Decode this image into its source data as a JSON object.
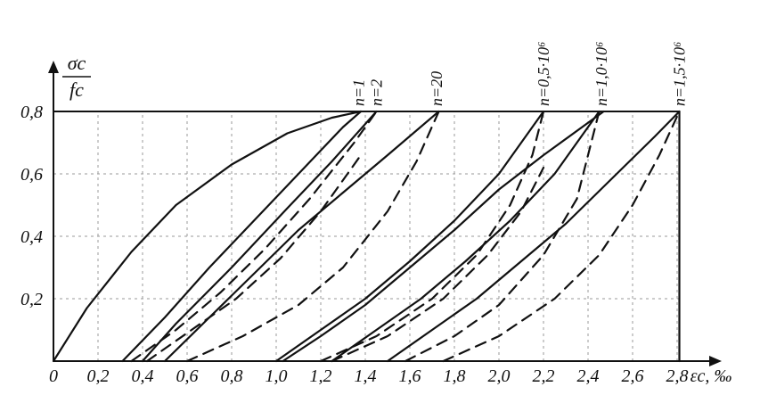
{
  "chart_data": {
    "type": "line",
    "ylabel": {
      "numerator": "σc",
      "denominator": "fc"
    },
    "xlabel": "εc, ‰",
    "xlim": [
      0,
      3.0
    ],
    "ylim": [
      0,
      0.8
    ],
    "grid": true,
    "x_ticks": [
      "0",
      "0,2",
      "0,4",
      "0,6",
      "0,8",
      "1,0",
      "1,2",
      "1,4",
      "1,6",
      "1,8",
      "2,0",
      "2,2",
      "2,4",
      "2,6",
      "2,8"
    ],
    "x_tick_values": [
      0,
      0.2,
      0.4,
      0.6,
      0.8,
      1.0,
      1.2,
      1.4,
      1.6,
      1.8,
      2.0,
      2.2,
      2.4,
      2.6,
      2.8
    ],
    "y_ticks": [
      "0,2",
      "0,4",
      "0,6",
      "0,8"
    ],
    "y_tick_values": [
      0.2,
      0.4,
      0.6,
      0.8
    ],
    "series_labels": [
      {
        "text": "n=1",
        "x": 1.37
      },
      {
        "text": "n=2",
        "x": 1.45
      },
      {
        "text": "n=20",
        "x": 1.72
      },
      {
        "text": "n=0,5·10⁶",
        "x": 2.2
      },
      {
        "text": "n=1,0·10⁶",
        "x": 2.46
      },
      {
        "text": "n=1,5·10⁶",
        "x": 2.81
      }
    ],
    "series": [
      {
        "style": "solid",
        "x": [
          0,
          0.15,
          0.35,
          0.55,
          0.8,
          1.05,
          1.25,
          1.38
        ],
        "y": [
          0,
          0.17,
          0.35,
          0.5,
          0.63,
          0.73,
          0.78,
          0.8
        ]
      },
      {
        "style": "solid",
        "x": [
          0.31,
          0.5,
          0.7,
          0.9,
          1.1,
          1.3,
          1.38
        ],
        "y": [
          0,
          0.14,
          0.3,
          0.45,
          0.6,
          0.75,
          0.8
        ]
      },
      {
        "style": "solid",
        "x": [
          0.4,
          0.55,
          0.8,
          1.05,
          1.25,
          1.45
        ],
        "y": [
          0,
          0.12,
          0.3,
          0.49,
          0.64,
          0.8
        ]
      },
      {
        "style": "solid",
        "x": [
          0.5,
          0.7,
          0.9,
          1.1,
          1.3,
          1.5,
          1.73
        ],
        "y": [
          0,
          0.14,
          0.28,
          0.42,
          0.54,
          0.66,
          0.8
        ]
      },
      {
        "style": "solid",
        "x": [
          1.0,
          1.2,
          1.4,
          1.6,
          1.8,
          2.0,
          2.2
        ],
        "y": [
          0,
          0.1,
          0.2,
          0.32,
          0.45,
          0.6,
          0.8
        ]
      },
      {
        "style": "solid",
        "x": [
          1.03,
          1.2,
          1.4,
          1.6,
          1.8,
          2.0,
          2.2,
          2.47
        ],
        "y": [
          0,
          0.08,
          0.18,
          0.3,
          0.42,
          0.55,
          0.66,
          0.8
        ]
      },
      {
        "style": "solid",
        "x": [
          1.25,
          1.45,
          1.65,
          1.85,
          2.05,
          2.25,
          2.45
        ],
        "y": [
          0,
          0.1,
          0.2,
          0.32,
          0.45,
          0.6,
          0.8
        ]
      },
      {
        "style": "solid",
        "x": [
          1.5,
          1.7,
          1.9,
          2.1,
          2.3,
          2.5,
          2.7,
          2.81
        ],
        "y": [
          0,
          0.1,
          0.2,
          0.32,
          0.44,
          0.58,
          0.72,
          0.8
        ]
      },
      {
        "style": "solid",
        "x": [
          2.81,
          2.81
        ],
        "y": [
          0,
          0.8
        ]
      },
      {
        "style": "dashed",
        "x": [
          0.35,
          0.55,
          0.75,
          0.95,
          1.15,
          1.35,
          1.45
        ],
        "y": [
          0,
          0.1,
          0.22,
          0.36,
          0.52,
          0.7,
          0.8
        ]
      },
      {
        "style": "dashed",
        "x": [
          0.42,
          0.62,
          0.82,
          1.02,
          1.2,
          1.38
        ],
        "y": [
          0,
          0.1,
          0.2,
          0.33,
          0.48,
          0.66
        ]
      },
      {
        "style": "dashed",
        "x": [
          0.6,
          0.85,
          1.1,
          1.3,
          1.5,
          1.63,
          1.73
        ],
        "y": [
          0,
          0.08,
          0.18,
          0.3,
          0.48,
          0.64,
          0.8
        ]
      },
      {
        "style": "dashed",
        "x": [
          1.2,
          1.45,
          1.7,
          1.9,
          2.05,
          2.15,
          2.2
        ],
        "y": [
          0,
          0.08,
          0.2,
          0.34,
          0.5,
          0.66,
          0.8
        ]
      },
      {
        "style": "dashed",
        "x": [
          1.25,
          1.5,
          1.75,
          1.95,
          2.1,
          2.2
        ],
        "y": [
          0,
          0.08,
          0.2,
          0.34,
          0.48,
          0.62
        ]
      },
      {
        "style": "dashed",
        "x": [
          1.58,
          1.8,
          2.0,
          2.2,
          2.35,
          2.45
        ],
        "y": [
          0,
          0.08,
          0.18,
          0.34,
          0.52,
          0.8
        ]
      },
      {
        "style": "dashed",
        "x": [
          1.75,
          2.0,
          2.25,
          2.45,
          2.6,
          2.72,
          2.81
        ],
        "y": [
          0,
          0.08,
          0.2,
          0.34,
          0.5,
          0.66,
          0.8
        ]
      }
    ]
  }
}
